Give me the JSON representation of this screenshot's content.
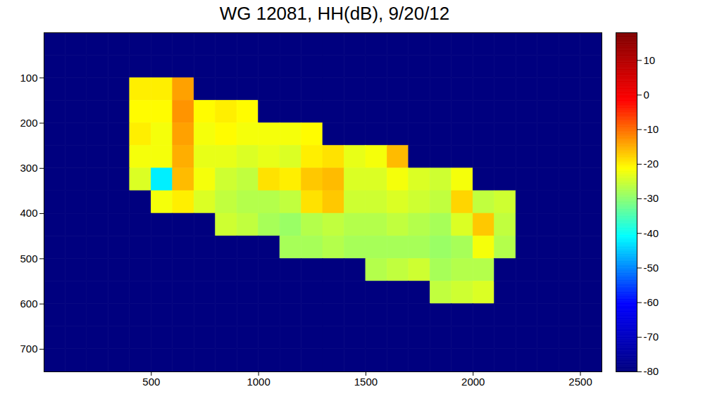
{
  "chart_data": {
    "type": "heatmap",
    "title": "WG 12081, HH(dB), 9/20/12",
    "x_edges": [
      0,
      100,
      200,
      300,
      400,
      500,
      600,
      700,
      800,
      900,
      1000,
      1100,
      1200,
      1300,
      1400,
      1500,
      1600,
      1700,
      1800,
      1900,
      2000,
      2100,
      2200,
      2300,
      2400,
      2500,
      2600
    ],
    "y_edges": [
      0,
      50,
      100,
      150,
      200,
      250,
      300,
      350,
      400,
      450,
      500,
      550,
      600,
      650,
      700,
      750
    ],
    "values": [
      [
        -80,
        -80,
        -80,
        -80,
        -80,
        -80,
        -80,
        -80,
        -80,
        -80,
        -80,
        -80,
        -80,
        -80,
        -80,
        -80,
        -80,
        -80,
        -80,
        -80,
        -80,
        -80,
        -80,
        -80,
        -80,
        -80
      ],
      [
        -80,
        -80,
        -80,
        -80,
        -80,
        -80,
        -80,
        -80,
        -80,
        -80,
        -80,
        -80,
        -80,
        -80,
        -80,
        -80,
        -80,
        -80,
        -80,
        -80,
        -80,
        -80,
        -80,
        -80,
        -80,
        -80
      ],
      [
        -80,
        -80,
        -80,
        -80,
        -20,
        -20,
        -14,
        -80,
        -80,
        -80,
        -80,
        -80,
        -80,
        -80,
        -80,
        -80,
        -80,
        -80,
        -80,
        -80,
        -80,
        -80,
        -80,
        -80,
        -80,
        -80
      ],
      [
        -80,
        -80,
        -80,
        -80,
        -21,
        -21,
        -13,
        -21,
        -20,
        -21,
        -80,
        -80,
        -80,
        -80,
        -80,
        -80,
        -80,
        -80,
        -80,
        -80,
        -80,
        -80,
        -80,
        -80,
        -80,
        -80
      ],
      [
        -80,
        -80,
        -80,
        -80,
        -20,
        -22,
        -14,
        -22,
        -21,
        -22,
        -22,
        -22,
        -21,
        -80,
        -80,
        -80,
        -80,
        -80,
        -80,
        -80,
        -80,
        -80,
        -80,
        -80,
        -80,
        -80
      ],
      [
        -80,
        -80,
        -80,
        -80,
        -22,
        -22,
        -15,
        -23,
        -23,
        -24,
        -23,
        -24,
        -20,
        -19,
        -23,
        -22,
        -16,
        -80,
        -80,
        -80,
        -80,
        -80,
        -80,
        -80,
        -80,
        -80
      ],
      [
        -80,
        -80,
        -80,
        -80,
        -24,
        -42,
        -16,
        -22,
        -25,
        -26,
        -19,
        -20,
        -17,
        -16,
        -24,
        -24,
        -22,
        -24,
        -25,
        -22,
        -80,
        -80,
        -80,
        -80,
        -80,
        -80
      ],
      [
        -80,
        -80,
        -80,
        -80,
        -80,
        -22,
        -20,
        -24,
        -26,
        -27,
        -27,
        -26,
        -19,
        -17,
        -25,
        -25,
        -24,
        -25,
        -26,
        -18,
        -26,
        -25,
        -80,
        -80,
        -80,
        -80
      ],
      [
        -80,
        -80,
        -80,
        -80,
        -80,
        -80,
        -80,
        -80,
        -25,
        -26,
        -28,
        -29,
        -27,
        -26,
        -27,
        -27,
        -26,
        -27,
        -28,
        -24,
        -17,
        -26,
        -80,
        -80,
        -80,
        -80
      ],
      [
        -80,
        -80,
        -80,
        -80,
        -80,
        -80,
        -80,
        -80,
        -80,
        -80,
        -80,
        -28,
        -28,
        -27,
        -28,
        -28,
        -28,
        -28,
        -29,
        -28,
        -22,
        -27,
        -80,
        -80,
        -80,
        -80
      ],
      [
        -80,
        -80,
        -80,
        -80,
        -80,
        -80,
        -80,
        -80,
        -80,
        -80,
        -80,
        -80,
        -80,
        -80,
        -80,
        -27,
        -26,
        -25,
        -28,
        -27,
        -27,
        -80,
        -80,
        -80,
        -80,
        -80
      ],
      [
        -80,
        -80,
        -80,
        -80,
        -80,
        -80,
        -80,
        -80,
        -80,
        -80,
        -80,
        -80,
        -80,
        -80,
        -80,
        -80,
        -80,
        -80,
        -26,
        -25,
        -24,
        -80,
        -80,
        -80,
        -80,
        -80
      ],
      [
        -80,
        -80,
        -80,
        -80,
        -80,
        -80,
        -80,
        -80,
        -80,
        -80,
        -80,
        -80,
        -80,
        -80,
        -80,
        -80,
        -80,
        -80,
        -80,
        -80,
        -80,
        -80,
        -80,
        -80,
        -80,
        -80
      ],
      [
        -80,
        -80,
        -80,
        -80,
        -80,
        -80,
        -80,
        -80,
        -80,
        -80,
        -80,
        -80,
        -80,
        -80,
        -80,
        -80,
        -80,
        -80,
        -80,
        -80,
        -80,
        -80,
        -80,
        -80,
        -80,
        -80
      ],
      [
        -80,
        -80,
        -80,
        -80,
        -80,
        -80,
        -80,
        -80,
        -80,
        -80,
        -80,
        -80,
        -80,
        -80,
        -80,
        -80,
        -80,
        -80,
        -80,
        -80,
        -80,
        -80,
        -80,
        -80,
        -80,
        -80
      ]
    ],
    "xlim": [
      0,
      2600
    ],
    "ylim": [
      0,
      750
    ],
    "xticks": [
      500,
      1000,
      1500,
      2000,
      2500
    ],
    "yticks": [
      100,
      200,
      300,
      400,
      500,
      600,
      700
    ],
    "colorbar": {
      "range": [
        -80,
        18
      ],
      "ticks": [
        10,
        0,
        -10,
        -20,
        -30,
        -40,
        -50,
        -60,
        -70,
        -80
      ]
    }
  }
}
